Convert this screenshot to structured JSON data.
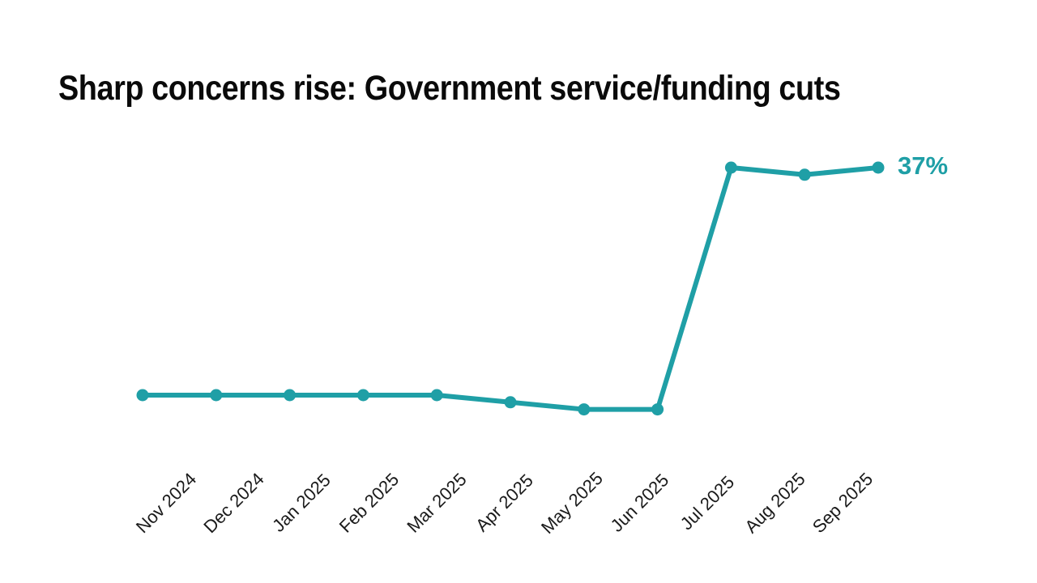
{
  "title": {
    "highlight": "Sharp",
    "rest": " concerns rise: Government service/funding cuts"
  },
  "chart_data": {
    "type": "line",
    "title": "Sharp concerns rise: Government service/funding cuts",
    "categories": [
      "Nov 2024",
      "Dec 2024",
      "Jan 2025",
      "Feb 2025",
      "Mar 2025",
      "Apr 2025",
      "May 2025",
      "Jun 2025",
      "Jul 2025",
      "Aug 2025",
      "Sep 2025"
    ],
    "values": [
      21,
      21,
      21,
      21,
      21,
      20.5,
      20,
      20,
      37,
      36.5,
      37
    ],
    "unit": "%",
    "end_label": "37%",
    "xlabel": "",
    "ylabel": "",
    "ylim": [
      17,
      40
    ],
    "grid": false,
    "legend": "none",
    "x_tick_rotation_deg": 45
  },
  "colors": {
    "accent": "#1F9FA6",
    "title_text": "#0a0a0a",
    "axis_text": "#1a1a1a",
    "background": "#FFFFFF"
  }
}
